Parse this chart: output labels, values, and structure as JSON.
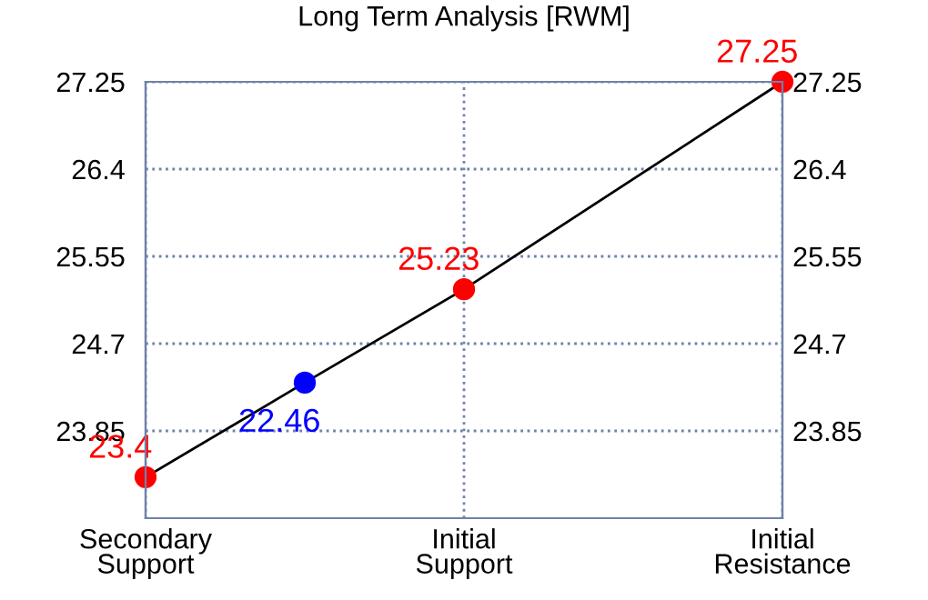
{
  "chart_data": {
    "type": "line",
    "title": "Long Term Analysis [RWM]",
    "categories": [
      "Secondary\nSupport",
      null,
      "Initial\nSupport",
      null,
      "Initial\nResistance"
    ],
    "ylim": [
      23.0,
      27.25
    ],
    "yticks": [
      23.85,
      24.7,
      25.55,
      26.4,
      27.25
    ],
    "y2lim": [
      23.0,
      27.25
    ],
    "y2ticks": [
      23.85,
      24.7,
      25.55,
      26.4,
      27.25
    ],
    "grid": true,
    "series": [
      {
        "color": "#000000",
        "marker": "circle",
        "values": [
          23.4,
          24.32,
          25.23,
          null,
          27.25
        ],
        "colors": [
          "#ff0000",
          "#0000ff",
          "#ff0000",
          null,
          "#ff0000"
        ],
        "value_labels": [
          "23.4",
          null,
          "25.23",
          null,
          "27.25"
        ]
      }
    ],
    "annotations": [
      "22.46"
    ]
  }
}
